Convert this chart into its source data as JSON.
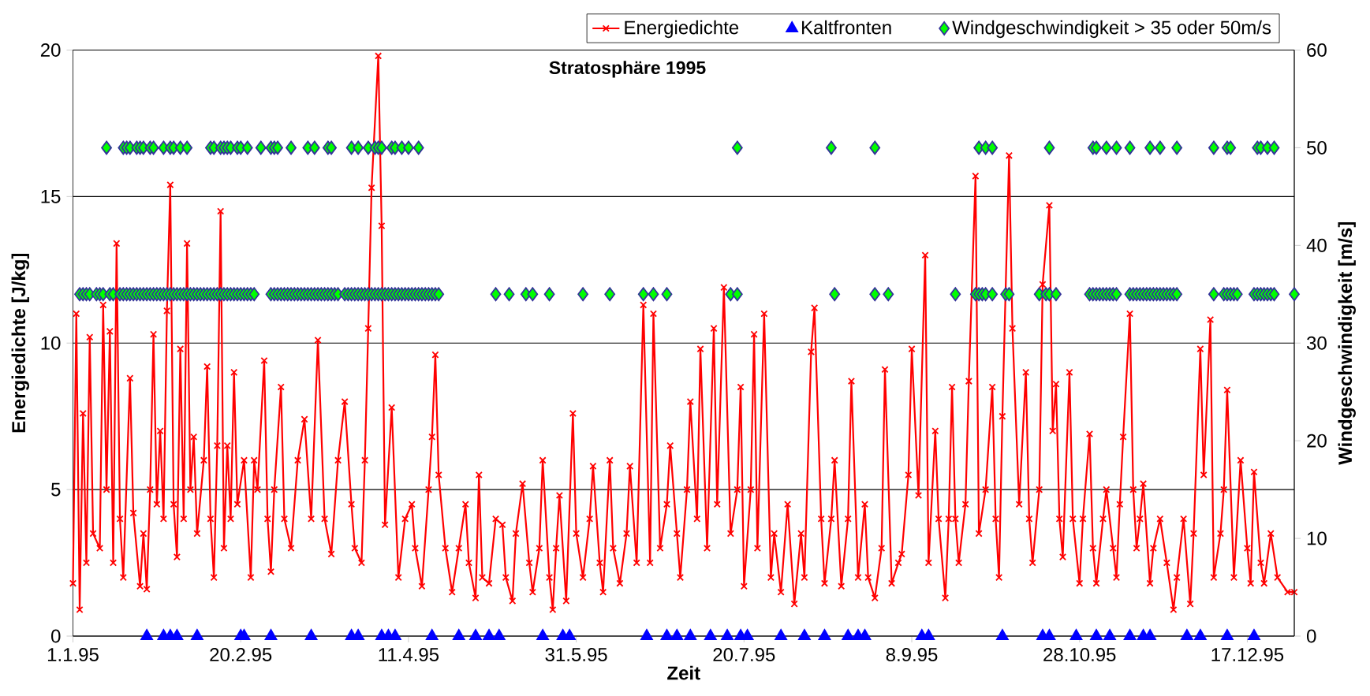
{
  "chart_data": {
    "type": "line",
    "title": "Stratosphäre 1995",
    "xlabel": "Zeit",
    "ylabel": "Energiedichte [J/kg]",
    "y2label": "Windgeschwindigkeit [m/s]",
    "xlim": [
      "1995-01-01",
      "1995-12-31"
    ],
    "xticks": [
      {
        "value": "1995-01-01",
        "label": "1.1.95"
      },
      {
        "value": "1995-02-20",
        "label": "20.2.95"
      },
      {
        "value": "1995-04-11",
        "label": "11.4.95"
      },
      {
        "value": "1995-05-31",
        "label": "31.5.95"
      },
      {
        "value": "1995-07-20",
        "label": "20.7.95"
      },
      {
        "value": "1995-09-08",
        "label": "8.9.95"
      },
      {
        "value": "1995-10-28",
        "label": "28.10.95"
      },
      {
        "value": "1995-12-17",
        "label": "17.12.95"
      }
    ],
    "ylim": [
      0,
      20
    ],
    "yticks": [
      0,
      5,
      10,
      15,
      20
    ],
    "y2lim": [
      0,
      60
    ],
    "y2ticks": [
      0,
      10,
      20,
      30,
      40,
      50,
      60
    ],
    "grid": "y",
    "legend": "top right",
    "series": [
      {
        "name": "Energiedichte",
        "color": "#ff0000",
        "marker": "cross",
        "line_style": "solid",
        "x": [
          "1995-01-01",
          "1995-01-02",
          "1995-01-03",
          "1995-01-04",
          "1995-01-05",
          "1995-01-06",
          "1995-01-07",
          "1995-01-09",
          "1995-01-10",
          "1995-01-11",
          "1995-01-12",
          "1995-01-13",
          "1995-01-14",
          "1995-01-15",
          "1995-01-16",
          "1995-01-18",
          "1995-01-19",
          "1995-01-21",
          "1995-01-22",
          "1995-01-23",
          "1995-01-24",
          "1995-01-25",
          "1995-01-26",
          "1995-01-27",
          "1995-01-28",
          "1995-01-29",
          "1995-01-30",
          "1995-01-31",
          "1995-02-01",
          "1995-02-02",
          "1995-02-03",
          "1995-02-04",
          "1995-02-05",
          "1995-02-06",
          "1995-02-07",
          "1995-02-09",
          "1995-02-10",
          "1995-02-11",
          "1995-02-12",
          "1995-02-13",
          "1995-02-14",
          "1995-02-15",
          "1995-02-16",
          "1995-02-17",
          "1995-02-18",
          "1995-02-19",
          "1995-02-21",
          "1995-02-23",
          "1995-02-24",
          "1995-02-25",
          "1995-02-27",
          "1995-02-28",
          "1995-03-01",
          "1995-03-02",
          "1995-03-04",
          "1995-03-05",
          "1995-03-07",
          "1995-03-09",
          "1995-03-11",
          "1995-03-13",
          "1995-03-15",
          "1995-03-17",
          "1995-03-19",
          "1995-03-21",
          "1995-03-23",
          "1995-03-25",
          "1995-03-26",
          "1995-03-28",
          "1995-03-29",
          "1995-03-30",
          "1995-03-31",
          "1995-04-02",
          "1995-04-03",
          "1995-04-04",
          "1995-04-06",
          "1995-04-08",
          "1995-04-10",
          "1995-04-12",
          "1995-04-13",
          "1995-04-15",
          "1995-04-17",
          "1995-04-18",
          "1995-04-19",
          "1995-04-20",
          "1995-04-22",
          "1995-04-24",
          "1995-04-26",
          "1995-04-28",
          "1995-04-29",
          "1995-05-01",
          "1995-05-02",
          "1995-05-03",
          "1995-05-05",
          "1995-05-07",
          "1995-05-09",
          "1995-05-10",
          "1995-05-12",
          "1995-05-13",
          "1995-05-15",
          "1995-05-17",
          "1995-05-18",
          "1995-05-20",
          "1995-05-21",
          "1995-05-23",
          "1995-05-24",
          "1995-05-25",
          "1995-05-26",
          "1995-05-28",
          "1995-05-30",
          "1995-05-31",
          "1995-06-02",
          "1995-06-04",
          "1995-06-05",
          "1995-06-07",
          "1995-06-08",
          "1995-06-10",
          "1995-06-11",
          "1995-06-13",
          "1995-06-15",
          "1995-06-16",
          "1995-06-18",
          "1995-06-20",
          "1995-06-22",
          "1995-06-23",
          "1995-06-25",
          "1995-06-27",
          "1995-06-28",
          "1995-06-30",
          "1995-07-01",
          "1995-07-03",
          "1995-07-04",
          "1995-07-06",
          "1995-07-07",
          "1995-07-09",
          "1995-07-11",
          "1995-07-12",
          "1995-07-14",
          "1995-07-16",
          "1995-07-18",
          "1995-07-19",
          "1995-07-20",
          "1995-07-22",
          "1995-07-23",
          "1995-07-24",
          "1995-07-26",
          "1995-07-28",
          "1995-07-29",
          "1995-07-31",
          "1995-08-02",
          "1995-08-04",
          "1995-08-06",
          "1995-08-07",
          "1995-08-09",
          "1995-08-10",
          "1995-08-12",
          "1995-08-13",
          "1995-08-15",
          "1995-08-16",
          "1995-08-18",
          "1995-08-20",
          "1995-08-21",
          "1995-08-23",
          "1995-08-25",
          "1995-08-26",
          "1995-08-28",
          "1995-08-30",
          "1995-08-31",
          "1995-09-02",
          "1995-09-04",
          "1995-09-05",
          "1995-09-07",
          "1995-09-08",
          "1995-09-10",
          "1995-09-12",
          "1995-09-13",
          "1995-09-15",
          "1995-09-16",
          "1995-09-18",
          "1995-09-19",
          "1995-09-20",
          "1995-09-21",
          "1995-09-22",
          "1995-09-24",
          "1995-09-25",
          "1995-09-27",
          "1995-09-28",
          "1995-09-30",
          "1995-10-02",
          "1995-10-03",
          "1995-10-04",
          "1995-10-05",
          "1995-10-07",
          "1995-10-08",
          "1995-10-10",
          "1995-10-12",
          "1995-10-13",
          "1995-10-14",
          "1995-10-16",
          "1995-10-17",
          "1995-10-19",
          "1995-10-20",
          "1995-10-21",
          "1995-10-22",
          "1995-10-23",
          "1995-10-25",
          "1995-10-26",
          "1995-10-28",
          "1995-10-29",
          "1995-10-31",
          "1995-11-01",
          "1995-11-02",
          "1995-11-04",
          "1995-11-05",
          "1995-11-07",
          "1995-11-08",
          "1995-11-09",
          "1995-11-10",
          "1995-11-12",
          "1995-11-13",
          "1995-11-14",
          "1995-11-15",
          "1995-11-16",
          "1995-11-18",
          "1995-11-19",
          "1995-11-21",
          "1995-11-23",
          "1995-11-25",
          "1995-11-26",
          "1995-11-28",
          "1995-11-30",
          "1995-12-01",
          "1995-12-03",
          "1995-12-04",
          "1995-12-06",
          "1995-12-07",
          "1995-12-09",
          "1995-12-10",
          "1995-12-11",
          "1995-12-13",
          "1995-12-15",
          "1995-12-17",
          "1995-12-18",
          "1995-12-19",
          "1995-12-21",
          "1995-12-22",
          "1995-12-24",
          "1995-12-26",
          "1995-12-29",
          "1995-12-31"
        ],
        "values": [
          1.8,
          11.0,
          0.9,
          7.6,
          2.5,
          10.2,
          3.5,
          3.0,
          11.3,
          5.0,
          10.4,
          2.5,
          13.4,
          4.0,
          2.0,
          8.8,
          4.2,
          1.7,
          3.5,
          1.6,
          5.0,
          10.3,
          4.5,
          7.0,
          4.0,
          11.1,
          15.4,
          4.5,
          2.7,
          9.8,
          4.0,
          13.4,
          5.0,
          6.8,
          3.5,
          6.0,
          9.2,
          4.0,
          2.0,
          6.5,
          14.5,
          3.0,
          6.5,
          4.0,
          9.0,
          4.5,
          6.0,
          2.0,
          6.0,
          5.0,
          9.4,
          4.0,
          2.2,
          5.0,
          8.5,
          4.0,
          3.0,
          6.0,
          7.4,
          4.0,
          10.1,
          4.0,
          2.8,
          6.0,
          8.0,
          4.5,
          3.0,
          2.5,
          6.0,
          10.5,
          15.3,
          19.8,
          14.0,
          3.8,
          7.8,
          2.0,
          4.0,
          4.5,
          3.0,
          1.7,
          5.0,
          6.8,
          9.6,
          5.5,
          3.0,
          1.5,
          3.0,
          4.5,
          2.5,
          1.3,
          5.5,
          2.0,
          1.8,
          4.0,
          3.8,
          2.0,
          1.2,
          3.5,
          5.2,
          2.5,
          1.5,
          3.0,
          6.0,
          2.0,
          0.9,
          3.0,
          4.8,
          1.2,
          7.6,
          3.5,
          2.0,
          4.0,
          5.8,
          2.5,
          1.5,
          6.0,
          3.0,
          1.8,
          3.5,
          5.8,
          2.5,
          11.3,
          2.5,
          11.0,
          3.0,
          4.5,
          6.5,
          3.5,
          2.0,
          5.0,
          8.0,
          4.0,
          9.8,
          3.0,
          10.5,
          4.5,
          11.9,
          3.5,
          5.0,
          8.5,
          1.7,
          5.0,
          10.3,
          3.0,
          11.0,
          2.0,
          3.5,
          1.5,
          4.5,
          1.1,
          3.5,
          2.0,
          9.7,
          11.2,
          4.0,
          1.8,
          4.0,
          6.0,
          1.7,
          4.0,
          8.7,
          2.0,
          4.5,
          2.0,
          1.3,
          3.0,
          9.1,
          1.8,
          2.5,
          2.8,
          5.5,
          9.8,
          4.8,
          13.0,
          2.5,
          7.0,
          4.0,
          1.3,
          4.0,
          8.5,
          4.0,
          2.5,
          4.5,
          8.7,
          15.7,
          3.5,
          5.0,
          8.5,
          4.0,
          2.0,
          7.5,
          16.4,
          10.5,
          4.5,
          9.0,
          4.0,
          2.5,
          5.0,
          12.0,
          14.7,
          7.0,
          8.6,
          4.0,
          2.7,
          9.0,
          4.0,
          1.8,
          4.0,
          6.9,
          3.0,
          1.8,
          4.0,
          5.0,
          3.0,
          2.0,
          4.5,
          6.8,
          11.0,
          5.0,
          3.0,
          4.0,
          5.2,
          1.8,
          3.0,
          4.0,
          2.5,
          0.9,
          2.0,
          4.0,
          1.1,
          3.5,
          9.8,
          5.5,
          10.8,
          2.0,
          3.5,
          5.0,
          8.4,
          2.0,
          6.0,
          3.0,
          1.8,
          5.6,
          2.5,
          1.8,
          3.5,
          2.0,
          1.5,
          1.5
        ]
      },
      {
        "name": "Kaltfronten",
        "type": "scatter",
        "color": "#0000ff",
        "marker": "triangle",
        "axis": "y2",
        "x": [
          "1995-01-23",
          "1995-01-28",
          "1995-01-30",
          "1995-02-01",
          "1995-02-07",
          "1995-02-20",
          "1995-02-21",
          "1995-03-01",
          "1995-03-13",
          "1995-03-25",
          "1995-03-27",
          "1995-04-03",
          "1995-04-05",
          "1995-04-07",
          "1995-04-18",
          "1995-04-26",
          "1995-05-01",
          "1995-05-05",
          "1995-05-08",
          "1995-05-21",
          "1995-05-27",
          "1995-05-29",
          "1995-06-21",
          "1995-06-27",
          "1995-06-30",
          "1995-07-04",
          "1995-07-10",
          "1995-07-15",
          "1995-07-19",
          "1995-07-21",
          "1995-07-31",
          "1995-08-07",
          "1995-08-13",
          "1995-08-20",
          "1995-08-23",
          "1995-08-25",
          "1995-09-11",
          "1995-09-13",
          "1995-10-05",
          "1995-10-17",
          "1995-10-19",
          "1995-10-27",
          "1995-11-02",
          "1995-11-06",
          "1995-11-12",
          "1995-11-16",
          "1995-11-18",
          "1995-11-29",
          "1995-12-03",
          "1995-12-11",
          "1995-12-19"
        ],
        "values": [
          0,
          0,
          0,
          0,
          0,
          0,
          0,
          0,
          0,
          0,
          0,
          0,
          0,
          0,
          0,
          0,
          0,
          0,
          0,
          0,
          0,
          0,
          0,
          0,
          0,
          0,
          0,
          0,
          0,
          0,
          0,
          0,
          0,
          0,
          0,
          0,
          0,
          0,
          0,
          0,
          0,
          0,
          0,
          0,
          0,
          0,
          0,
          0,
          0,
          0,
          0
        ]
      },
      {
        "name": "Windgeschwindigkeit > 35 oder 50m/s",
        "type": "scatter",
        "color": "#00ff00",
        "marker": "diamond",
        "axis": "y2",
        "x": [
          "1995-01-03",
          "1995-01-04",
          "1995-01-05",
          "1995-01-06",
          "1995-01-08",
          "1995-01-09",
          "1995-01-10",
          "1995-01-12",
          "1995-01-13",
          "1995-01-15",
          "1995-01-16",
          "1995-01-17",
          "1995-01-18",
          "1995-01-19",
          "1995-01-20",
          "1995-01-21",
          "1995-01-22",
          "1995-01-23",
          "1995-01-24",
          "1995-01-25",
          "1995-01-26",
          "1995-01-27",
          "1995-01-28",
          "1995-01-29",
          "1995-01-30",
          "1995-01-31",
          "1995-02-01",
          "1995-02-02",
          "1995-02-03",
          "1995-02-04",
          "1995-02-05",
          "1995-02-06",
          "1995-02-07",
          "1995-02-08",
          "1995-02-09",
          "1995-02-10",
          "1995-02-11",
          "1995-02-12",
          "1995-02-13",
          "1995-02-14",
          "1995-02-15",
          "1995-02-16",
          "1995-02-17",
          "1995-02-18",
          "1995-02-19",
          "1995-02-20",
          "1995-02-21",
          "1995-02-22",
          "1995-02-23",
          "1995-02-24",
          "1995-03-01",
          "1995-03-02",
          "1995-03-03",
          "1995-03-04",
          "1995-03-05",
          "1995-03-06",
          "1995-03-07",
          "1995-03-08",
          "1995-03-09",
          "1995-03-10",
          "1995-03-11",
          "1995-03-12",
          "1995-03-13",
          "1995-03-14",
          "1995-03-15",
          "1995-03-16",
          "1995-03-17",
          "1995-03-18",
          "1995-03-19",
          "1995-03-20",
          "1995-03-21",
          "1995-03-23",
          "1995-03-24",
          "1995-03-25",
          "1995-03-26",
          "1995-03-27",
          "1995-03-28",
          "1995-03-29",
          "1995-03-30",
          "1995-03-31",
          "1995-04-01",
          "1995-04-02",
          "1995-04-03",
          "1995-04-04",
          "1995-04-05",
          "1995-04-06",
          "1995-04-07",
          "1995-04-08",
          "1995-04-09",
          "1995-04-10",
          "1995-04-11",
          "1995-04-12",
          "1995-04-13",
          "1995-04-14",
          "1995-04-15",
          "1995-04-16",
          "1995-04-17",
          "1995-04-18",
          "1995-04-19",
          "1995-04-20",
          "1995-05-07",
          "1995-05-11",
          "1995-05-16",
          "1995-05-18",
          "1995-05-23",
          "1995-06-02",
          "1995-06-10",
          "1995-06-20",
          "1995-06-23",
          "1995-06-27",
          "1995-07-16",
          "1995-07-18",
          "1995-08-16",
          "1995-08-28",
          "1995-09-01",
          "1995-09-21",
          "1995-09-27",
          "1995-09-28",
          "1995-09-29",
          "1995-09-30",
          "1995-10-02",
          "1995-10-06",
          "1995-10-07",
          "1995-10-16",
          "1995-10-18",
          "1995-10-19",
          "1995-10-21",
          "1995-10-31",
          "1995-11-01",
          "1995-11-02",
          "1995-11-03",
          "1995-11-04",
          "1995-11-05",
          "1995-11-06",
          "1995-11-07",
          "1995-11-08",
          "1995-11-12",
          "1995-11-13",
          "1995-11-14",
          "1995-11-15",
          "1995-11-16",
          "1995-11-17",
          "1995-11-18",
          "1995-11-19",
          "1995-11-20",
          "1995-11-21",
          "1995-11-22",
          "1995-11-23",
          "1995-11-24",
          "1995-11-25",
          "1995-11-26",
          "1995-12-07",
          "1995-12-10",
          "1995-12-11",
          "1995-12-12",
          "1995-12-13",
          "1995-12-14",
          "1995-12-19",
          "1995-12-20",
          "1995-12-21",
          "1995-12-22",
          "1995-12-23",
          "1995-12-24",
          "1995-12-25",
          "1995-12-31"
        ],
        "values": [
          35,
          35,
          35,
          35,
          35,
          35,
          35,
          35,
          35,
          35,
          35,
          35,
          35,
          35,
          35,
          35,
          35,
          35,
          35,
          35,
          35,
          35,
          35,
          35,
          35,
          35,
          35,
          35,
          35,
          35,
          35,
          35,
          35,
          35,
          35,
          35,
          35,
          35,
          35,
          35,
          35,
          35,
          35,
          35,
          35,
          35,
          35,
          35,
          35,
          35,
          35,
          35,
          35,
          35,
          35,
          35,
          35,
          35,
          35,
          35,
          35,
          35,
          35,
          35,
          35,
          35,
          35,
          35,
          35,
          35,
          35,
          35,
          35,
          35,
          35,
          35,
          35,
          35,
          35,
          35,
          35,
          35,
          35,
          35,
          35,
          35,
          35,
          35,
          35,
          35,
          35,
          35,
          35,
          35,
          35,
          35,
          35,
          35,
          35,
          35,
          35,
          35,
          35,
          35,
          35,
          35,
          35,
          35,
          35,
          35,
          35,
          35,
          35,
          35,
          35,
          35,
          35,
          35,
          35,
          35,
          35,
          35,
          35,
          35,
          35,
          35,
          35,
          35,
          35,
          35,
          35,
          35,
          35,
          35,
          35,
          35,
          35,
          35,
          35,
          35,
          35,
          35,
          35,
          35,
          35,
          35,
          35,
          35,
          35,
          35,
          35,
          35,
          35,
          35,
          35,
          35,
          35,
          35,
          35,
          35,
          35,
          35,
          35,
          35,
          35
        ]
      },
      {
        "type": "scatter",
        "color": "#00ff00",
        "marker": "diamond",
        "axis": "y2",
        "x": [
          "1995-01-11",
          "1995-01-16",
          "1995-01-17",
          "1995-01-18",
          "1995-01-20",
          "1995-01-21",
          "1995-01-22",
          "1995-01-24",
          "1995-01-25",
          "1995-01-28",
          "1995-01-30",
          "1995-01-31",
          "1995-02-02",
          "1995-02-04",
          "1995-02-11",
          "1995-02-12",
          "1995-02-14",
          "1995-02-15",
          "1995-02-16",
          "1995-02-17",
          "1995-02-19",
          "1995-02-20",
          "1995-02-22",
          "1995-02-26",
          "1995-03-01",
          "1995-03-02",
          "1995-03-03",
          "1995-03-07",
          "1995-03-12",
          "1995-03-14",
          "1995-03-18",
          "1995-03-19",
          "1995-03-25",
          "1995-03-27",
          "1995-03-30",
          "1995-04-01",
          "1995-04-02",
          "1995-04-03",
          "1995-04-06",
          "1995-04-07",
          "1995-04-09",
          "1995-04-11",
          "1995-04-14",
          "1995-07-18",
          "1995-08-15",
          "1995-08-28",
          "1995-09-28",
          "1995-09-30",
          "1995-10-02",
          "1995-10-19",
          "1995-11-01",
          "1995-11-02",
          "1995-11-05",
          "1995-11-08",
          "1995-11-12",
          "1995-11-18",
          "1995-11-21",
          "1995-11-26",
          "1995-12-07",
          "1995-12-11",
          "1995-12-12",
          "1995-12-20",
          "1995-12-21",
          "1995-12-23",
          "1995-12-25"
        ],
        "values": [
          50,
          50,
          50,
          50,
          50,
          50,
          50,
          50,
          50,
          50,
          50,
          50,
          50,
          50,
          50,
          50,
          50,
          50,
          50,
          50,
          50,
          50,
          50,
          50,
          50,
          50,
          50,
          50,
          50,
          50,
          50,
          50,
          50,
          50,
          50,
          50,
          50,
          50,
          50,
          50,
          50,
          50,
          50,
          50,
          50,
          50,
          50,
          50,
          50,
          50,
          50,
          50,
          50,
          50,
          50,
          50,
          50,
          50,
          50,
          50,
          50,
          50,
          50,
          50,
          50
        ]
      }
    ]
  }
}
